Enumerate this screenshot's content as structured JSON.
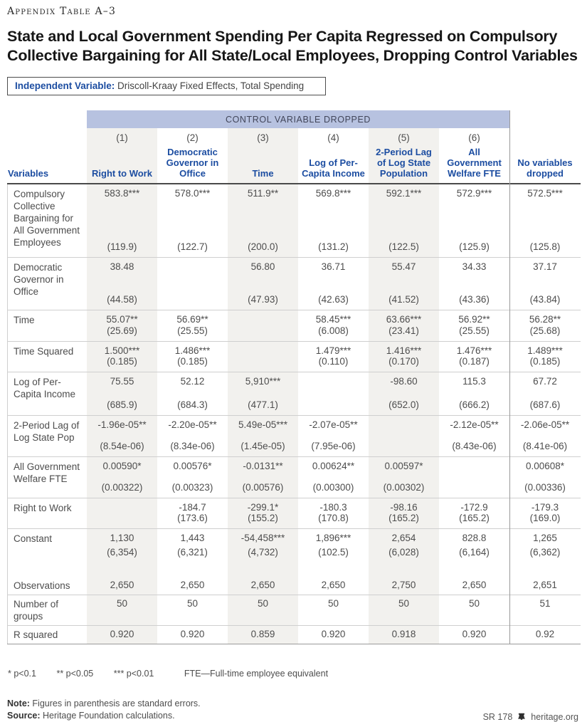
{
  "eyebrow": "Appendix Table A–3",
  "title": {
    "line1": "State and Local Government Spending Per Capita Regressed on Compulsory",
    "line2": "Collective Bargaining for All State/Local Employees, Dropping Control Variables"
  },
  "independent_variable": {
    "label": "Independent Variable:",
    "value": " Driscoll-Kraay Fixed Effects, Total Spending"
  },
  "colors": {
    "accent_blue": "#1c4da1",
    "banner_bg": "#b7c2e0",
    "stripe_gray": "#f2f1ee"
  },
  "table": {
    "banner": "CONTROL VARIABLE DROPPED",
    "row_header": "Variables",
    "col_numbers": [
      "",
      "(1)",
      "(2)",
      "(3)",
      "(4)",
      "(5)",
      "(6)",
      ""
    ],
    "columns": [
      "Right to Work",
      "Democratic Governor in Office",
      "Time",
      "Log of Per-Capita Income",
      "2-Period Lag of Log State Population",
      "All Government Welfare FTE",
      "No variables dropped"
    ],
    "rows": [
      {
        "label": "Compulsory Collective Bargaining for All Government Employees",
        "coef": [
          "583.8***",
          "578.0***",
          "511.9**",
          "569.8***",
          "592.1***",
          "572.9***",
          "572.5***"
        ],
        "se": [
          "(119.9)",
          "(122.7)",
          "(200.0)",
          "(131.2)",
          "(122.5)",
          "(125.9)",
          "(125.8)"
        ]
      },
      {
        "label": "Democratic Governor in Office",
        "coef": [
          "38.48",
          "",
          "56.80",
          "36.71",
          "55.47",
          "34.33",
          "37.17"
        ],
        "se": [
          "(44.58)",
          "",
          "(47.93)",
          "(42.63)",
          "(41.52)",
          "(43.36)",
          "(43.84)"
        ]
      },
      {
        "label": "Time",
        "coef": [
          "55.07**",
          "56.69**",
          "",
          "58.45***",
          "63.66***",
          "56.92**",
          "56.28**"
        ],
        "se": [
          "(25.69)",
          "(25.55)",
          "",
          "(6.008)",
          "(23.41)",
          "(25.55)",
          "(25.68)"
        ]
      },
      {
        "label": "Time Squared",
        "coef": [
          "1.500***",
          "1.486***",
          "",
          "1.479***",
          "1.416***",
          "1.476***",
          "1.489***"
        ],
        "se": [
          "(0.185)",
          "(0.185)",
          "",
          "(0.110)",
          "(0.170)",
          "(0.187)",
          "(0.185)"
        ]
      },
      {
        "label": "Log of Per-Capita Income",
        "coef": [
          "75.55",
          "52.12",
          "5,910***",
          "",
          "-98.60",
          "115.3",
          "67.72"
        ],
        "se": [
          "(685.9)",
          "(684.3)",
          "(477.1)",
          "",
          "(652.0)",
          "(666.2)",
          "(687.6)"
        ]
      },
      {
        "label": "2-Period Lag of Log State Pop",
        "coef": [
          "-1.96e-05**",
          "-2.20e-05**",
          "5.49e-05***",
          "-2.07e-05**",
          "",
          "-2.12e-05**",
          "-2.06e-05**"
        ],
        "se": [
          "(8.54e-06)",
          "(8.34e-06)",
          "(1.45e-05)",
          "(7.95e-06)",
          "",
          "(8.43e-06)",
          "(8.41e-06)"
        ]
      },
      {
        "label": "All Government Welfare FTE",
        "coef": [
          "0.00590*",
          "0.00576*",
          "-0.0131**",
          "0.00624**",
          "0.00597*",
          "",
          "0.00608*"
        ],
        "se": [
          "(0.00322)",
          "(0.00323)",
          "(0.00576)",
          "(0.00300)",
          "(0.00302)",
          "",
          "(0.00336)"
        ]
      },
      {
        "label": "Right to Work",
        "coef": [
          "",
          "-184.7",
          "-299.1*",
          "-180.3",
          "-98.16",
          "-172.9",
          "-179.3"
        ],
        "se": [
          "",
          "(173.6)",
          "(155.2)",
          "(170.8)",
          "(165.2)",
          "(165.2)",
          "(169.0)"
        ]
      },
      {
        "label": "Constant",
        "coef": [
          "1,130",
          "1,443",
          "-54,458***",
          "1,896***",
          "2,654",
          "828.8",
          "1,265"
        ],
        "se": [
          "(6,354)",
          "(6,321)",
          "(4,732)",
          "(102.5)",
          "(6,028)",
          "(6,164)",
          "(6,362)"
        ]
      }
    ],
    "stat_rows": [
      {
        "label": "Observations",
        "values": [
          "2,650",
          "2,650",
          "2,650",
          "2,650",
          "2,750",
          "2,650",
          "2,651"
        ]
      },
      {
        "label": "Number of groups",
        "values": [
          "50",
          "50",
          "50",
          "50",
          "50",
          "50",
          "51"
        ]
      },
      {
        "label": "R squared",
        "values": [
          "0.920",
          "0.920",
          "0.859",
          "0.920",
          "0.918",
          "0.920",
          "0.92"
        ]
      }
    ]
  },
  "footnotes": {
    "significance": [
      "* p<0.1",
      "** p<0.05",
      "*** p<0.01",
      "FTE—Full-time employee equivalent"
    ],
    "note_label": "Note:",
    "note_text": " Figures in parenthesis are standard errors.",
    "source_label": "Source:",
    "source_text": " Heritage Foundation calculations.",
    "doc_id": "SR 178",
    "site": "heritage.org"
  }
}
